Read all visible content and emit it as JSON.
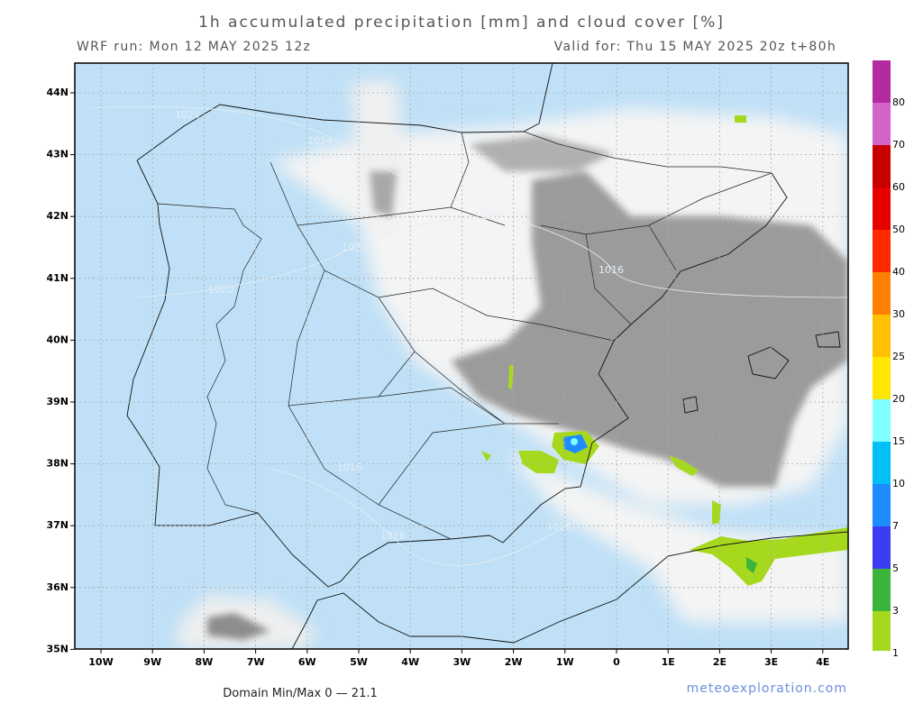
{
  "header": {
    "title": "1h accumulated precipitation [mm] and cloud cover [%]",
    "run": "WRF run: Mon 12 MAY 2025 12z",
    "valid": "Valid for: Thu 15 MAY 2025 20z  t+80h"
  },
  "map": {
    "lat_labels": [
      "44N",
      "43N",
      "42N",
      "41N",
      "40N",
      "39N",
      "38N",
      "37N",
      "36N",
      "35N"
    ],
    "lon_labels": [
      "10W",
      "9W",
      "8W",
      "7W",
      "6W",
      "5W",
      "4W",
      "3W",
      "2W",
      "1W",
      "0",
      "1E",
      "2E",
      "3E",
      "4E"
    ],
    "isobar_labels": [
      "1024",
      "1024",
      "1020",
      "1020",
      "1020",
      "1016",
      "1016",
      "1016",
      "1016"
    ]
  },
  "legend": {
    "levels": [
      1,
      3,
      5,
      7,
      10,
      15,
      20,
      25,
      30,
      40,
      50,
      60,
      70,
      80
    ],
    "colors": [
      "#a6d91e",
      "#3cb43c",
      "#3c3cf0",
      "#1e8cff",
      "#00c0f5",
      "#80ffff",
      "#ffe600",
      "#ffc000",
      "#ff8000",
      "#ff2a00",
      "#e60000",
      "#c80000",
      "#d264c8",
      "#b42aa0",
      "#8c0096"
    ]
  },
  "footer": {
    "minmax": "Domain Min/Max 0 — 21.1",
    "credit": "meteoexploration.com"
  }
}
